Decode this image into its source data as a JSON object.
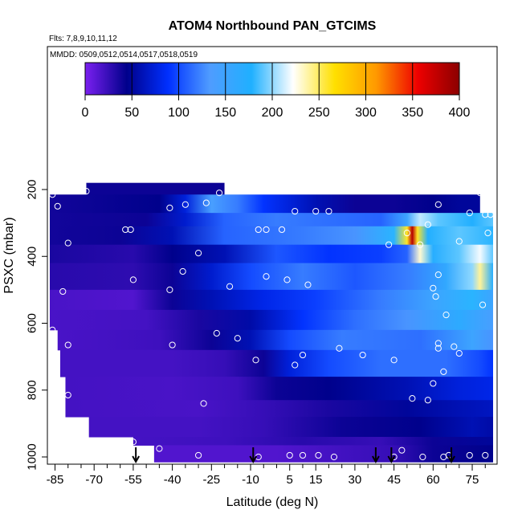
{
  "chart_data": {
    "type": "heatmap",
    "title": "ATOM4 Northbound PAN_GTCIMS",
    "subtitle_flights": "Flts: 7,8,9,10,11,12",
    "subtitle_dates": "MMDD: 0509,0512,0514,0517,0518,0519",
    "xlabel": "Latitude (deg N)",
    "ylabel": "PSXC (mbar)",
    "xlim": [
      -87,
      83
    ],
    "ylim": [
      1015,
      100
    ],
    "x_ticks": [
      -85,
      -70,
      -55,
      -40,
      -25,
      -10,
      5,
      15,
      30,
      45,
      60,
      75
    ],
    "x_minor_ticks": [
      -80,
      -75,
      -65,
      -60,
      -50,
      -45,
      -35,
      -30,
      -20,
      -15,
      -5,
      0,
      10,
      20,
      25,
      35,
      40,
      50,
      55,
      65,
      70,
      80
    ],
    "y_ticks": [
      200,
      400,
      600,
      800,
      1000
    ],
    "colorbar": {
      "range": [
        0,
        400
      ],
      "ticks": [
        0,
        50,
        100,
        150,
        200,
        250,
        300,
        350,
        400
      ],
      "colors": [
        "#7b20f0",
        "#00008b",
        "#0030ff",
        "#4f9cff",
        "#1fb0ff",
        "#ffffff",
        "#ffe000",
        "#ff9900",
        "#ee0000",
        "#8b0000"
      ]
    },
    "sampling_arrows_latitude": [
      -54,
      -9,
      38,
      44,
      67
    ],
    "field_rows": [
      {
        "p": [
          180,
          215
        ],
        "lat": [
          -73,
          -20
        ],
        "stops": [
          [
            -73,
            40
          ],
          [
            -20,
            40
          ]
        ]
      },
      {
        "p": [
          215,
          270
        ],
        "lat": [
          -87,
          78
        ],
        "stops": [
          [
            -87,
            38
          ],
          [
            -45,
            45
          ],
          [
            -35,
            75
          ],
          [
            -25,
            140
          ],
          [
            -15,
            120
          ],
          [
            -5,
            90
          ],
          [
            15,
            60
          ],
          [
            30,
            40
          ],
          [
            45,
            40
          ],
          [
            60,
            45
          ],
          [
            70,
            50
          ],
          [
            78,
            50
          ]
        ]
      },
      {
        "p": [
          270,
          310
        ],
        "lat": [
          -87,
          83
        ],
        "stops": [
          [
            -87,
            38
          ],
          [
            -50,
            40
          ],
          [
            -35,
            70
          ],
          [
            -20,
            110
          ],
          [
            0,
            120
          ],
          [
            20,
            115
          ],
          [
            40,
            110
          ],
          [
            50,
            150
          ],
          [
            55,
            210
          ],
          [
            62,
            190
          ],
          [
            75,
            175
          ],
          [
            83,
            190
          ]
        ]
      },
      {
        "p": [
          310,
          365
        ],
        "lat": [
          -87,
          83
        ],
        "stops": [
          [
            -87,
            38
          ],
          [
            -60,
            40
          ],
          [
            -40,
            60
          ],
          [
            -20,
            110
          ],
          [
            10,
            120
          ],
          [
            30,
            130
          ],
          [
            45,
            180
          ],
          [
            50,
            260
          ],
          [
            52,
            380
          ],
          [
            54,
            260
          ],
          [
            58,
            175
          ],
          [
            70,
            190
          ],
          [
            83,
            180
          ]
        ]
      },
      {
        "p": [
          365,
          420
        ],
        "lat": [
          -87,
          83
        ],
        "stops": [
          [
            -87,
            35
          ],
          [
            -55,
            30
          ],
          [
            -40,
            45
          ],
          [
            -20,
            60
          ],
          [
            0,
            105
          ],
          [
            20,
            90
          ],
          [
            40,
            95
          ],
          [
            50,
            110
          ],
          [
            55,
            230
          ],
          [
            60,
            170
          ],
          [
            70,
            190
          ],
          [
            78,
            220
          ],
          [
            83,
            190
          ]
        ]
      },
      {
        "p": [
          420,
          500
        ],
        "lat": [
          -87,
          83
        ],
        "stops": [
          [
            -87,
            30
          ],
          [
            -55,
            28
          ],
          [
            -40,
            40
          ],
          [
            -25,
            70
          ],
          [
            -10,
            100
          ],
          [
            10,
            120
          ],
          [
            30,
            105
          ],
          [
            50,
            120
          ],
          [
            65,
            160
          ],
          [
            75,
            200
          ],
          [
            78,
            240
          ],
          [
            83,
            170
          ]
        ]
      },
      {
        "p": [
          500,
          560
        ],
        "lat": [
          -87,
          83
        ],
        "stops": [
          [
            -87,
            18
          ],
          [
            -55,
            15
          ],
          [
            -40,
            40
          ],
          [
            -25,
            60
          ],
          [
            -5,
            80
          ],
          [
            15,
            95
          ],
          [
            40,
            120
          ],
          [
            60,
            150
          ],
          [
            75,
            180
          ],
          [
            83,
            150
          ]
        ]
      },
      {
        "p": [
          560,
          620
        ],
        "lat": [
          -87,
          83
        ],
        "stops": [
          [
            -87,
            18
          ],
          [
            -50,
            20
          ],
          [
            -30,
            35
          ],
          [
            -10,
            55
          ],
          [
            10,
            90
          ],
          [
            30,
            115
          ],
          [
            50,
            130
          ],
          [
            70,
            165
          ],
          [
            83,
            140
          ]
        ]
      },
      {
        "p": [
          620,
          680
        ],
        "lat": [
          -84,
          83
        ],
        "stops": [
          [
            -84,
            18
          ],
          [
            -45,
            22
          ],
          [
            -25,
            40
          ],
          [
            -10,
            60
          ],
          [
            5,
            100
          ],
          [
            25,
            120
          ],
          [
            55,
            115
          ],
          [
            75,
            150
          ],
          [
            83,
            130
          ]
        ]
      },
      {
        "p": [
          680,
          760
        ],
        "lat": [
          -83,
          83
        ],
        "stops": [
          [
            -83,
            20
          ],
          [
            -40,
            20
          ],
          [
            -20,
            25
          ],
          [
            -5,
            40
          ],
          [
            5,
            75
          ],
          [
            20,
            100
          ],
          [
            40,
            115
          ],
          [
            65,
            115
          ],
          [
            78,
            100
          ],
          [
            83,
            90
          ]
        ]
      },
      {
        "p": [
          760,
          830
        ],
        "lat": [
          -81,
          83
        ],
        "stops": [
          [
            -81,
            20
          ],
          [
            -40,
            18
          ],
          [
            -15,
            22
          ],
          [
            0,
            40
          ],
          [
            20,
            45
          ],
          [
            50,
            60
          ],
          [
            70,
            75
          ],
          [
            83,
            80
          ]
        ]
      },
      {
        "p": [
          830,
          880
        ],
        "lat": [
          -81,
          83
        ],
        "stops": [
          [
            -81,
            20
          ],
          [
            -30,
            18
          ],
          [
            -5,
            25
          ],
          [
            20,
            35
          ],
          [
            50,
            50
          ],
          [
            70,
            60
          ],
          [
            83,
            65
          ]
        ]
      },
      {
        "p": [
          880,
          940
        ],
        "lat": [
          -72,
          83
        ],
        "stops": [
          [
            -72,
            20
          ],
          [
            -30,
            20
          ],
          [
            -5,
            25
          ],
          [
            25,
            40
          ],
          [
            55,
            45
          ],
          [
            75,
            60
          ],
          [
            83,
            55
          ]
        ]
      },
      {
        "p": [
          940,
          965
        ],
        "lat": [
          -55,
          83
        ],
        "stops": [
          [
            -55,
            20
          ],
          [
            -20,
            22
          ],
          [
            10,
            30
          ],
          [
            40,
            25
          ],
          [
            60,
            40
          ],
          [
            83,
            50
          ]
        ]
      },
      {
        "p": [
          965,
          1015
        ],
        "lat": [
          -47,
          83
        ],
        "stops": [
          [
            -47,
            15
          ],
          [
            0,
            15
          ],
          [
            20,
            20
          ],
          [
            45,
            25
          ],
          [
            60,
            40
          ],
          [
            83,
            45
          ]
        ]
      }
    ],
    "sample_points": [
      [
        -86,
        215
      ],
      [
        -84,
        250
      ],
      [
        -80,
        360
      ],
      [
        -82,
        505
      ],
      [
        -86,
        620
      ],
      [
        -80,
        665
      ],
      [
        -80,
        815
      ],
      [
        -73,
        205
      ],
      [
        -58,
        320
      ],
      [
        -56,
        320
      ],
      [
        -55,
        470
      ],
      [
        -55,
        955
      ],
      [
        -45,
        975
      ],
      [
        -41,
        255
      ],
      [
        -35,
        245
      ],
      [
        -36,
        445
      ],
      [
        -41,
        500
      ],
      [
        -40,
        665
      ],
      [
        -30,
        390
      ],
      [
        -28,
        840
      ],
      [
        -30,
        995
      ],
      [
        -27,
        240
      ],
      [
        -22,
        210
      ],
      [
        -23,
        630
      ],
      [
        -18,
        490
      ],
      [
        -15,
        645
      ],
      [
        -7,
        320
      ],
      [
        -4,
        320
      ],
      [
        2,
        320
      ],
      [
        -4,
        460
      ],
      [
        4,
        470
      ],
      [
        7,
        265
      ],
      [
        -8,
        710
      ],
      [
        -7,
        1000
      ],
      [
        7,
        725
      ],
      [
        10,
        695
      ],
      [
        12,
        485
      ],
      [
        10,
        995
      ],
      [
        15,
        265
      ],
      [
        20,
        265
      ],
      [
        24,
        675
      ],
      [
        33,
        695
      ],
      [
        45,
        710
      ],
      [
        45,
        1000
      ],
      [
        5,
        995
      ],
      [
        16,
        995
      ],
      [
        22,
        1000
      ],
      [
        43,
        365
      ],
      [
        50,
        330
      ],
      [
        55,
        365
      ],
      [
        62,
        245
      ],
      [
        58,
        305
      ],
      [
        62,
        455
      ],
      [
        60,
        495
      ],
      [
        61,
        520
      ],
      [
        65,
        575
      ],
      [
        62,
        675
      ],
      [
        70,
        690
      ],
      [
        68,
        670
      ],
      [
        58,
        830
      ],
      [
        52,
        825
      ],
      [
        60,
        780
      ],
      [
        48,
        980
      ],
      [
        56,
        1000
      ],
      [
        64,
        1000
      ],
      [
        66,
        995
      ],
      [
        78,
        210
      ],
      [
        80,
        275
      ],
      [
        82,
        275
      ],
      [
        81,
        330
      ],
      [
        70,
        355
      ],
      [
        74,
        995
      ],
      [
        80,
        995
      ],
      [
        79,
        545
      ],
      [
        62,
        660
      ],
      [
        64,
        745
      ],
      [
        74,
        270
      ]
    ]
  }
}
